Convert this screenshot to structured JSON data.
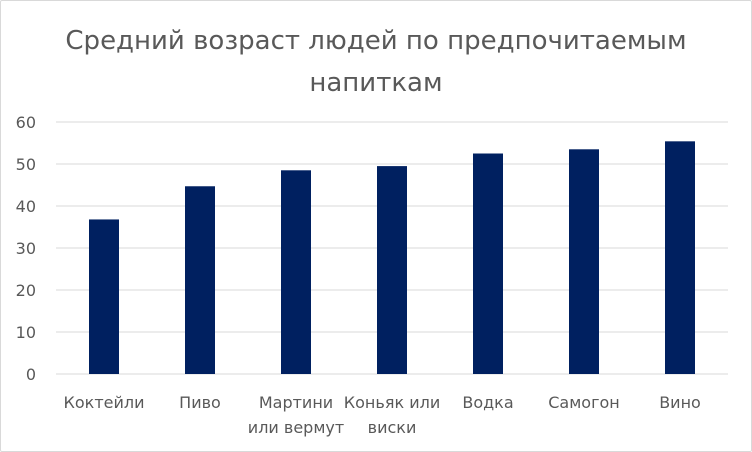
{
  "chart_data": {
    "type": "bar",
    "title": "Средний возраст людей по предпочитаемым напиткам",
    "title_lines": [
      "Средний возраст людей по предпочитаемым",
      "напиткам"
    ],
    "categories": [
      "Коктейли",
      "Пиво",
      "Мартини или вермут",
      "Коньяк или виски",
      "Водка",
      "Самогон",
      "Вино"
    ],
    "category_lines": [
      [
        "Коктейли"
      ],
      [
        "Пиво"
      ],
      [
        "Мартини",
        "или вермут"
      ],
      [
        "Коньяк или",
        "виски"
      ],
      [
        "Водка"
      ],
      [
        "Самогон"
      ],
      [
        "Вино"
      ]
    ],
    "values": [
      36.8,
      44.7,
      48.5,
      49.5,
      52.5,
      53.5,
      55.4
    ],
    "ylim": [
      0,
      60
    ],
    "yticks": [
      0,
      10,
      20,
      30,
      40,
      50,
      60
    ],
    "xlabel": "",
    "ylabel": "",
    "grid": true,
    "legend": "none",
    "bar_color": "#002060",
    "grid_color": "#d9d9d9",
    "text_color": "#595959"
  }
}
